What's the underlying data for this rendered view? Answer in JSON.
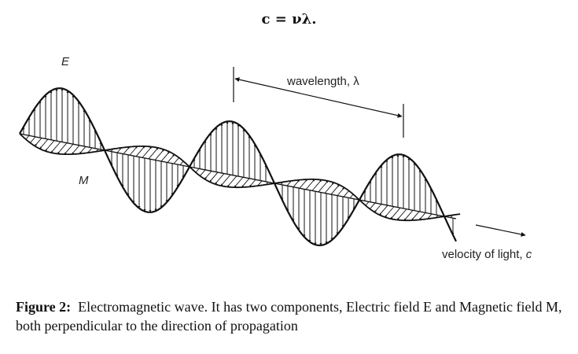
{
  "formula": "c = νλ.",
  "labels": {
    "electric": "E",
    "magnetic": "M",
    "wavelength": "wavelength, λ",
    "velocity_prefix": "velocity of light, ",
    "velocity_symbol": "c"
  },
  "caption": {
    "label": "Figure 2:",
    "text": "Electromagnetic wave. It has two components, Electric field E and Magnetic field M, both perpendicular to the direction of propagation"
  },
  "colors": {
    "ink": "#111111"
  }
}
